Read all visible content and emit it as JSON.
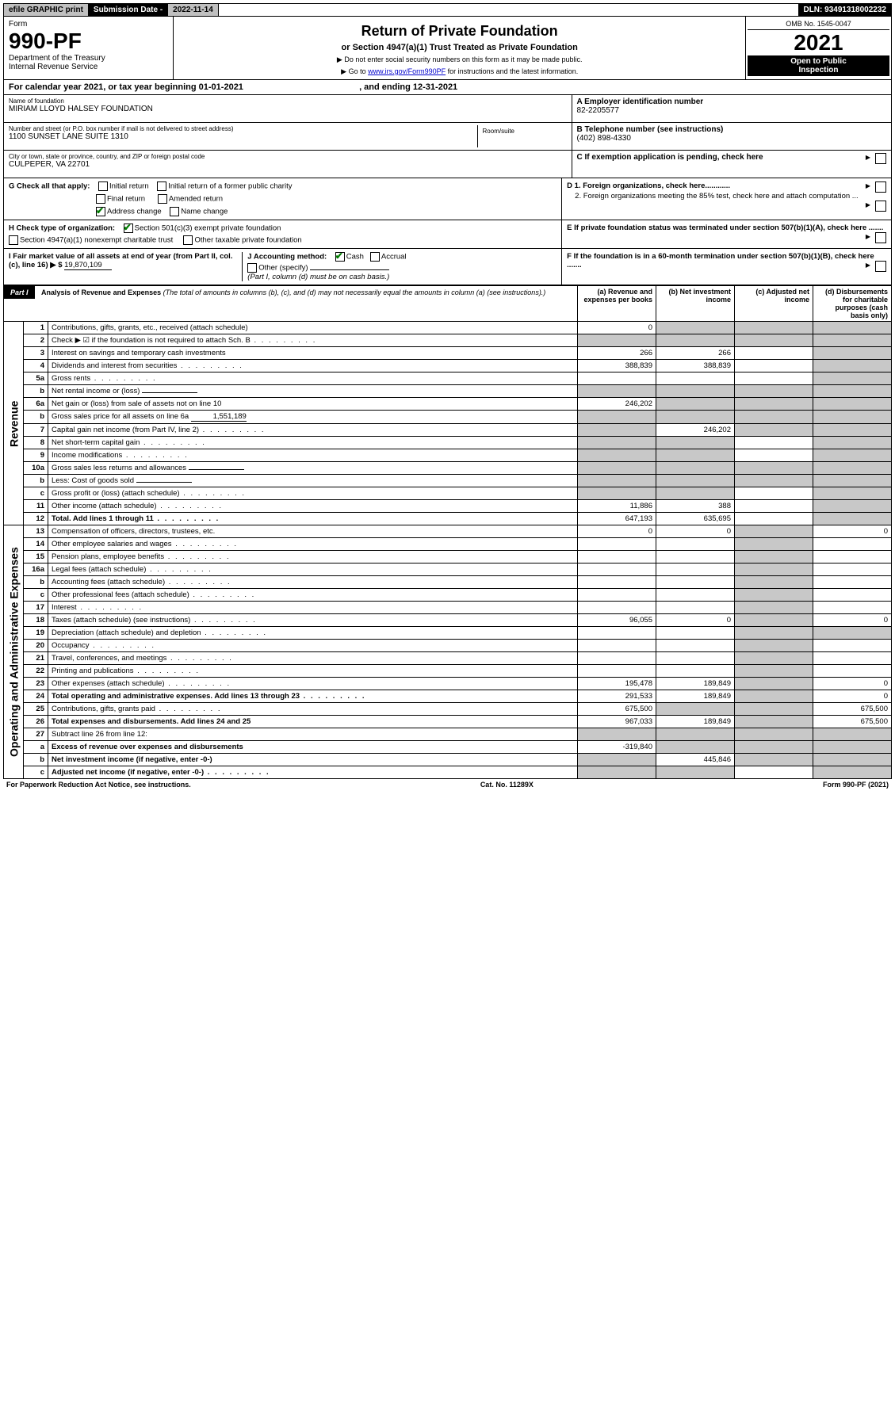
{
  "topbar": {
    "efile": "efile GRAPHIC print",
    "sub_label": "Submission Date - ",
    "sub_date": "2022-11-14",
    "dln": "DLN: 93491318002232"
  },
  "header": {
    "form_label": "Form",
    "form_num": "990-PF",
    "dept1": "Department of the Treasury",
    "dept2": "Internal Revenue Service",
    "title": "Return of Private Foundation",
    "subtitle": "or Section 4947(a)(1) Trust Treated as Private Foundation",
    "instr1": "▶ Do not enter social security numbers on this form as it may be made public.",
    "instr2_pre": "▶ Go to ",
    "instr2_link": "www.irs.gov/Form990PF",
    "instr2_post": " for instructions and the latest information.",
    "omb": "OMB No. 1545-0047",
    "year": "2021",
    "open1": "Open to Public",
    "open2": "Inspection"
  },
  "calyear": {
    "pre": "For calendar year 2021, or tax year beginning ",
    "begin": "01-01-2021",
    "mid": " , and ending ",
    "end": "12-31-2021"
  },
  "info": {
    "name_label": "Name of foundation",
    "name": "MIRIAM LLOYD HALSEY FOUNDATION",
    "addr_label": "Number and street (or P.O. box number if mail is not delivered to street address)",
    "addr": "1100 SUNSET LANE SUITE 1310",
    "room_label": "Room/suite",
    "city_label": "City or town, state or province, country, and ZIP or foreign postal code",
    "city": "CULPEPER, VA  22701",
    "a_label": "A Employer identification number",
    "a_val": "82-2205577",
    "b_label": "B Telephone number (see instructions)",
    "b_val": "(402) 898-4330",
    "c_label": "C If exemption application is pending, check here"
  },
  "checks": {
    "g_label": "G Check all that apply:",
    "g_opts": [
      "Initial return",
      "Initial return of a former public charity",
      "Final return",
      "Amended return",
      "Address change",
      "Name change"
    ],
    "h_label": "H Check type of organization:",
    "h_opt1": "Section 501(c)(3) exempt private foundation",
    "h_opt2": "Section 4947(a)(1) nonexempt charitable trust",
    "h_opt3": "Other taxable private foundation",
    "i_label": "I Fair market value of all assets at end of year (from Part II, col. (c), line 16) ▶ $",
    "i_val": "19,870,109",
    "j_label": "J Accounting method:",
    "j_cash": "Cash",
    "j_accrual": "Accrual",
    "j_other": "Other (specify)",
    "j_note": "(Part I, column (d) must be on cash basis.)",
    "d1": "D 1. Foreign organizations, check here............",
    "d2": "2. Foreign organizations meeting the 85% test, check here and attach computation ...",
    "e": "E  If private foundation status was terminated under section 507(b)(1)(A), check here .......",
    "f": "F  If the foundation is in a 60-month termination under section 507(b)(1)(B), check here ......."
  },
  "part1": {
    "label": "Part I",
    "title": "Analysis of Revenue and Expenses",
    "note": " (The total of amounts in columns (b), (c), and (d) may not necessarily equal the amounts in column (a) (see instructions).)",
    "cols": {
      "a": "(a) Revenue and expenses per books",
      "b": "(b) Net investment income",
      "c": "(c) Adjusted net income",
      "d": "(d) Disbursements for charitable purposes (cash basis only)"
    }
  },
  "sides": {
    "rev": "Revenue",
    "exp": "Operating and Administrative Expenses"
  },
  "rows": [
    {
      "n": "1",
      "d": "shade",
      "a": "0",
      "b": "shade",
      "c": "shade"
    },
    {
      "n": "2",
      "d": "shade",
      "a": "shade",
      "b": "shade",
      "c": "shade",
      "dots": true
    },
    {
      "n": "3",
      "d": "shade",
      "a": "266",
      "b": "266",
      "c": ""
    },
    {
      "n": "4",
      "d": "shade",
      "a": "388,839",
      "b": "388,839",
      "c": "",
      "dots": true
    },
    {
      "n": "5a",
      "d": "shade",
      "a": "",
      "b": "",
      "c": "",
      "dots": true
    },
    {
      "n": "b",
      "d": "shade",
      "a": "shade",
      "b": "shade",
      "c": "shade",
      "uline": true
    },
    {
      "n": "6a",
      "d": "shade",
      "a": "246,202",
      "b": "shade",
      "c": "shade"
    },
    {
      "n": "b",
      "d": "shade",
      "a": "shade",
      "b": "shade",
      "c": "shade",
      "uline": true,
      "uval": "1,551,189"
    },
    {
      "n": "7",
      "d": "shade",
      "a": "shade",
      "b": "246,202",
      "c": "shade",
      "dots": true
    },
    {
      "n": "8",
      "d": "shade",
      "a": "shade",
      "b": "shade",
      "c": "",
      "dots": true
    },
    {
      "n": "9",
      "d": "shade",
      "a": "shade",
      "b": "shade",
      "c": "",
      "dots": true
    },
    {
      "n": "10a",
      "d": "shade",
      "a": "shade",
      "b": "shade",
      "c": "shade",
      "uline": true
    },
    {
      "n": "b",
      "d": "shade",
      "a": "shade",
      "b": "shade",
      "c": "shade",
      "dots": true,
      "uline": true
    },
    {
      "n": "c",
      "d": "shade",
      "a": "shade",
      "b": "shade",
      "c": "",
      "dots": true
    },
    {
      "n": "11",
      "d": "shade",
      "a": "11,886",
      "b": "388",
      "c": "",
      "dots": true
    },
    {
      "n": "12",
      "d": "shade",
      "a": "647,193",
      "b": "635,695",
      "c": "",
      "bold": true,
      "dots": true
    }
  ],
  "exp_rows": [
    {
      "n": "13",
      "d": "0",
      "a": "0",
      "b": "0",
      "c": "shade"
    },
    {
      "n": "14",
      "d": "",
      "a": "",
      "b": "",
      "c": "shade",
      "dots": true
    },
    {
      "n": "15",
      "d": "",
      "a": "",
      "b": "",
      "c": "shade",
      "dots": true
    },
    {
      "n": "16a",
      "d": "",
      "a": "",
      "b": "",
      "c": "shade",
      "dots": true
    },
    {
      "n": "b",
      "d": "",
      "a": "",
      "b": "",
      "c": "shade",
      "dots": true
    },
    {
      "n": "c",
      "d": "",
      "a": "",
      "b": "",
      "c": "shade",
      "dots": true
    },
    {
      "n": "17",
      "d": "",
      "a": "",
      "b": "",
      "c": "shade",
      "dots": true
    },
    {
      "n": "18",
      "d": "0",
      "a": "96,055",
      "b": "0",
      "c": "shade",
      "dots": true
    },
    {
      "n": "19",
      "d": "shade",
      "a": "",
      "b": "",
      "c": "shade",
      "dots": true
    },
    {
      "n": "20",
      "d": "",
      "a": "",
      "b": "",
      "c": "shade",
      "dots": true
    },
    {
      "n": "21",
      "d": "",
      "a": "",
      "b": "",
      "c": "shade",
      "dots": true
    },
    {
      "n": "22",
      "d": "",
      "a": "",
      "b": "",
      "c": "shade",
      "dots": true
    },
    {
      "n": "23",
      "d": "0",
      "a": "195,478",
      "b": "189,849",
      "c": "shade",
      "dots": true
    },
    {
      "n": "24",
      "d": "0",
      "a": "291,533",
      "b": "189,849",
      "c": "shade",
      "bold": true,
      "dots": true
    },
    {
      "n": "25",
      "d": "675,500",
      "a": "675,500",
      "b": "shade",
      "c": "shade",
      "dots": true
    },
    {
      "n": "26",
      "d": "675,500",
      "a": "967,033",
      "b": "189,849",
      "c": "shade",
      "bold": true
    },
    {
      "n": "27",
      "d": "shade",
      "a": "shade",
      "b": "shade",
      "c": "shade"
    },
    {
      "n": "a",
      "d": "shade",
      "a": "-319,840",
      "b": "shade",
      "c": "shade",
      "bold": true
    },
    {
      "n": "b",
      "d": "shade",
      "a": "shade",
      "b": "445,846",
      "c": "shade",
      "bold": true
    },
    {
      "n": "c",
      "d": "shade",
      "a": "shade",
      "b": "shade",
      "c": "",
      "bold": true,
      "dots": true
    }
  ],
  "footer": {
    "left": "For Paperwork Reduction Act Notice, see instructions.",
    "mid": "Cat. No. 11289X",
    "right": "Form 990-PF (2021)"
  }
}
